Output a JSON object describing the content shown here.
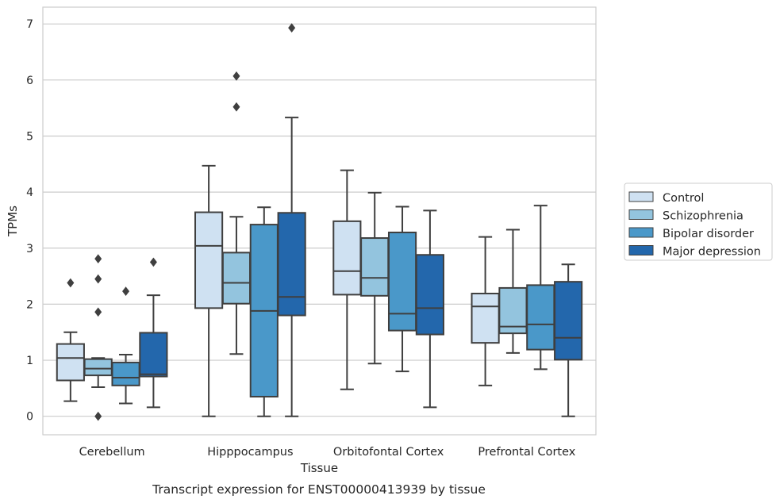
{
  "chart_data": {
    "type": "boxplot",
    "title": "",
    "caption": "Transcript expression for ENST00000413939 by tissue",
    "xlabel": "Tissue",
    "ylabel": "TPMs",
    "ylim": [
      -0.33,
      7.3
    ],
    "yticks": [
      0,
      1,
      2,
      3,
      4,
      5,
      6,
      7
    ],
    "grid": true,
    "legend_position": "right",
    "categories": [
      "Cerebellum",
      "Hipppocampus",
      "Orbitofontal Cortex",
      "Prefrontal Cortex"
    ],
    "series": [
      {
        "name": "Control",
        "color": "#cfe1f2",
        "boxes": [
          {
            "whislo": 0.27,
            "q1": 0.64,
            "med": 1.04,
            "q3": 1.29,
            "whishi": 1.5,
            "fliers": [
              2.38
            ]
          },
          {
            "whislo": 0.0,
            "q1": 1.93,
            "med": 3.04,
            "q3": 3.64,
            "whishi": 4.47,
            "fliers": []
          },
          {
            "whislo": 0.48,
            "q1": 2.17,
            "med": 2.59,
            "q3": 3.48,
            "whishi": 4.39,
            "fliers": []
          },
          {
            "whislo": 0.55,
            "q1": 1.31,
            "med": 1.96,
            "q3": 2.19,
            "whishi": 3.2,
            "fliers": []
          }
        ]
      },
      {
        "name": "Schizophrenia",
        "color": "#93c4de",
        "boxes": [
          {
            "whislo": 0.52,
            "q1": 0.73,
            "med": 0.85,
            "q3": 1.02,
            "whishi": 1.04,
            "fliers": [
              2.81,
              2.45,
              1.86,
              0.0
            ]
          },
          {
            "whislo": 1.11,
            "q1": 2.01,
            "med": 2.38,
            "q3": 2.92,
            "whishi": 3.56,
            "fliers": [
              6.07,
              5.52
            ]
          },
          {
            "whislo": 0.94,
            "q1": 2.15,
            "med": 2.47,
            "q3": 3.18,
            "whishi": 3.99,
            "fliers": []
          },
          {
            "whislo": 1.13,
            "q1": 1.48,
            "med": 1.6,
            "q3": 2.29,
            "whishi": 3.33,
            "fliers": []
          }
        ]
      },
      {
        "name": "Bipolar disorder",
        "color": "#4a98c9",
        "boxes": [
          {
            "whislo": 0.23,
            "q1": 0.55,
            "med": 0.69,
            "q3": 0.96,
            "whishi": 1.1,
            "fliers": [
              2.23
            ]
          },
          {
            "whislo": 0.0,
            "q1": 0.35,
            "med": 1.88,
            "q3": 3.42,
            "whishi": 3.73,
            "fliers": []
          },
          {
            "whislo": 0.8,
            "q1": 1.53,
            "med": 1.83,
            "q3": 3.28,
            "whishi": 3.74,
            "fliers": []
          },
          {
            "whislo": 0.84,
            "q1": 1.19,
            "med": 1.64,
            "q3": 2.34,
            "whishi": 3.76,
            "fliers": []
          }
        ]
      },
      {
        "name": "Major depression",
        "color": "#2367ac",
        "boxes": [
          {
            "whislo": 0.16,
            "q1": 0.71,
            "med": 0.75,
            "q3": 1.49,
            "whishi": 2.16,
            "fliers": [
              2.75
            ]
          },
          {
            "whislo": 0.0,
            "q1": 1.8,
            "med": 2.13,
            "q3": 3.63,
            "whishi": 5.33,
            "fliers": [
              6.93
            ]
          },
          {
            "whislo": 0.16,
            "q1": 1.46,
            "med": 1.93,
            "q3": 2.88,
            "whishi": 3.67,
            "fliers": []
          },
          {
            "whislo": 0.0,
            "q1": 1.01,
            "med": 1.4,
            "q3": 2.4,
            "whishi": 2.71,
            "fliers": []
          }
        ]
      }
    ]
  }
}
